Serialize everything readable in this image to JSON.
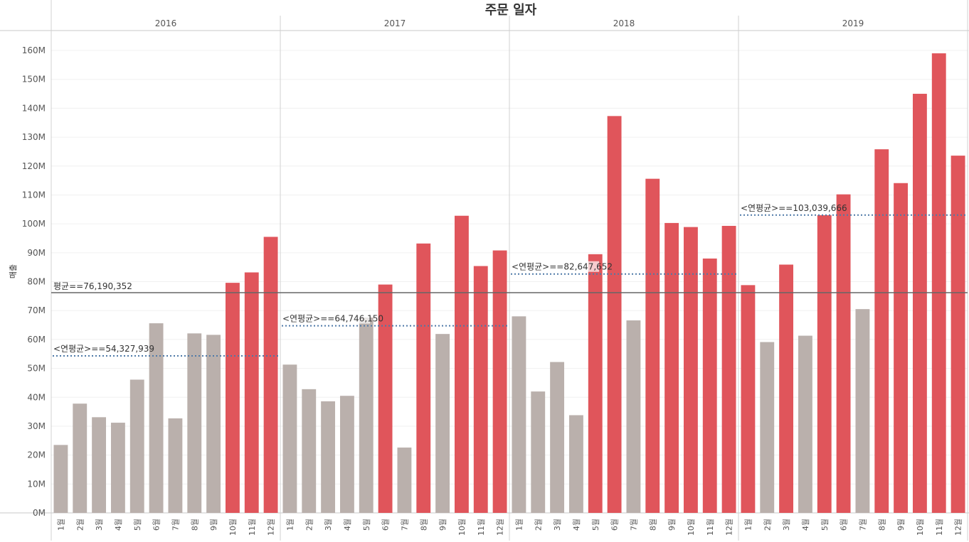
{
  "chart_data": {
    "type": "bar",
    "title": "주문 일자",
    "ylabel": "매출",
    "ylim": [
      0,
      165000000
    ],
    "yticks": [
      0,
      10000000,
      20000000,
      30000000,
      40000000,
      50000000,
      60000000,
      70000000,
      80000000,
      90000000,
      100000000,
      110000000,
      120000000,
      130000000,
      140000000,
      150000000,
      160000000
    ],
    "ytick_labels": [
      "0M",
      "10M",
      "20M",
      "30M",
      "40M",
      "50M",
      "60M",
      "70M",
      "80M",
      "90M",
      "100M",
      "110M",
      "120M",
      "130M",
      "140M",
      "150M",
      "160M"
    ],
    "month_labels": [
      "1월",
      "2월",
      "3월",
      "4월",
      "5월",
      "6월",
      "7월",
      "8월",
      "9월",
      "10월",
      "11월",
      "12월"
    ],
    "colors": {
      "above": "#E0555B",
      "below": "#BAB0AC",
      "overall_line": "#666666",
      "year_line": "#4E79A7"
    },
    "overall_average": {
      "value": 76190352,
      "label": "평균==76,190,352"
    },
    "years": [
      {
        "year": "2016",
        "average": 54327939,
        "average_label": "<연평균>==54,327,939",
        "values": [
          23500000,
          37800000,
          33100000,
          31200000,
          46100000,
          65600000,
          32700000,
          62100000,
          61600000,
          79600000,
          83200000,
          95500000
        ]
      },
      {
        "year": "2017",
        "average": 64746150,
        "average_label": "<연평균>==64,746,150",
        "values": [
          51300000,
          42800000,
          38600000,
          40500000,
          67600000,
          79000000,
          22600000,
          93200000,
          61900000,
          102800000,
          85400000,
          90800000
        ]
      },
      {
        "year": "2018",
        "average": 82647652,
        "average_label": "<연평균>==82,647,652",
        "values": [
          68000000,
          42000000,
          52200000,
          33800000,
          89500000,
          137300000,
          66600000,
          115600000,
          100300000,
          98900000,
          88000000,
          99300000
        ]
      },
      {
        "year": "2019",
        "average": 103039666,
        "average_label": "<연평균>==103,039,666",
        "values": [
          78800000,
          59100000,
          85900000,
          61300000,
          103000000,
          110200000,
          70500000,
          125800000,
          114100000,
          145000000,
          159000000,
          123600000
        ]
      }
    ]
  }
}
